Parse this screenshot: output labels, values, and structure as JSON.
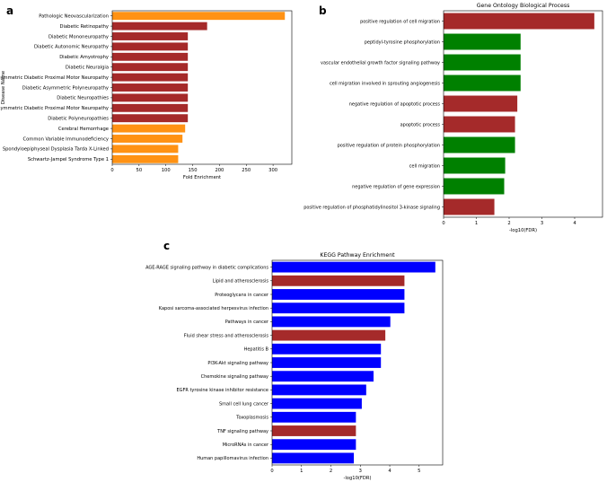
{
  "chart_data": [
    {
      "panel_label": "a",
      "type": "bar",
      "orientation": "horizontal",
      "title": "",
      "xlabel": "Fold Enrichment",
      "ylabel": "Disease Name",
      "xlim": [
        0,
        335
      ],
      "xticks": [
        "0",
        "50",
        "100",
        "150",
        "200",
        "250",
        "300"
      ],
      "grid": false,
      "colors": {
        "orange": "#ff9214",
        "red": "#a52a2a"
      },
      "categories": [
        "Pathologic Neovascularization",
        "Diabetic Retinopathy",
        "Diabetic Mononeuropathy",
        "Diabetic Autonomic Neuropathy",
        "Diabetic Amyotrophy",
        "Diabetic Neuralgia",
        "Symmetric Diabetic Proximal Motor Neuropathy",
        "Diabetic Asymmetric Polyneuropathy",
        "Diabetic Neuropathies",
        "Asymmetric Diabetic Proximal Motor Neuropathy",
        "Diabetic Polyneuropathies",
        "Cerebral Hemorrhage",
        "Common Variable Immunodeficiency",
        "Spondyloepiphyseal Dysplasia Tarda X-Linked",
        "Schwartz-Jampel Syndrome Type 1"
      ],
      "values": [
        322,
        177,
        141,
        141,
        141,
        141,
        141,
        141,
        141,
        141,
        141,
        136,
        131,
        123,
        123
      ],
      "bar_colors": [
        "orange",
        "red",
        "red",
        "red",
        "red",
        "red",
        "red",
        "red",
        "red",
        "red",
        "red",
        "orange",
        "orange",
        "orange",
        "orange"
      ]
    },
    {
      "panel_label": "b",
      "type": "bar",
      "orientation": "horizontal",
      "title": "Gene Ontology Biological Process",
      "xlabel": "-log10(FDR)",
      "ylabel": "",
      "xlim": [
        0,
        4.85
      ],
      "xticks": [
        "0",
        "1",
        "2",
        "3",
        "4"
      ],
      "grid": false,
      "colors": {
        "red": "#a52a2a",
        "green": "#008000"
      },
      "categories": [
        "positive regulation of cell migration",
        "peptidyl-tyrosine phosphorylation",
        "vascular endothelial growth factor signaling pathway",
        "cell migration involved in sprouting angiogenesis",
        "negative regulation of apoptotic process",
        "apoptotic process",
        "positive regulation of protein phosphorylation",
        "cell migration",
        "negative regulation of gene expression",
        "positive regulation of phosphatidylinositol 3-kinase signaling"
      ],
      "values": [
        4.6,
        2.35,
        2.35,
        2.35,
        2.25,
        2.18,
        2.18,
        1.88,
        1.85,
        1.55
      ],
      "bar_colors": [
        "red",
        "green",
        "green",
        "green",
        "red",
        "red",
        "green",
        "green",
        "green",
        "red"
      ]
    },
    {
      "panel_label": "c",
      "type": "bar",
      "orientation": "horizontal",
      "title": "KEGG Pathway Enrichment",
      "xlabel": "-log10(FDR)",
      "ylabel": "",
      "xlim": [
        0,
        5.8
      ],
      "xticks": [
        "0",
        "1",
        "2",
        "3",
        "4",
        "5"
      ],
      "grid": false,
      "colors": {
        "blue": "#0000ff",
        "red": "#a52a2a"
      },
      "categories": [
        "AGE-RAGE signaling pathway in diabetic complications",
        "Lipid and atherosclerosis",
        "Proteoglycans in cancer",
        "Kaposi sarcoma-associated herpesvirus infection",
        "Pathways in cancer",
        "Fluid shear stress and atherosclerosis",
        "Hepatitis B",
        "PI3K-Akt signaling pathway",
        "Chemokine signaling pathway",
        "EGFR tyrosine kinase inhibitor resistance",
        "Small cell lung cancer",
        "Toxoplasmosis",
        "TNF signaling pathway",
        "MicroRNAs in cancer",
        "Human papillomavirus infection"
      ],
      "values": [
        5.55,
        4.5,
        4.5,
        4.5,
        4.02,
        3.85,
        3.7,
        3.7,
        3.45,
        3.2,
        3.05,
        2.85,
        2.85,
        2.85,
        2.78
      ],
      "bar_colors": [
        "blue",
        "red",
        "blue",
        "blue",
        "blue",
        "red",
        "blue",
        "blue",
        "blue",
        "blue",
        "blue",
        "blue",
        "red",
        "blue",
        "blue"
      ]
    }
  ]
}
